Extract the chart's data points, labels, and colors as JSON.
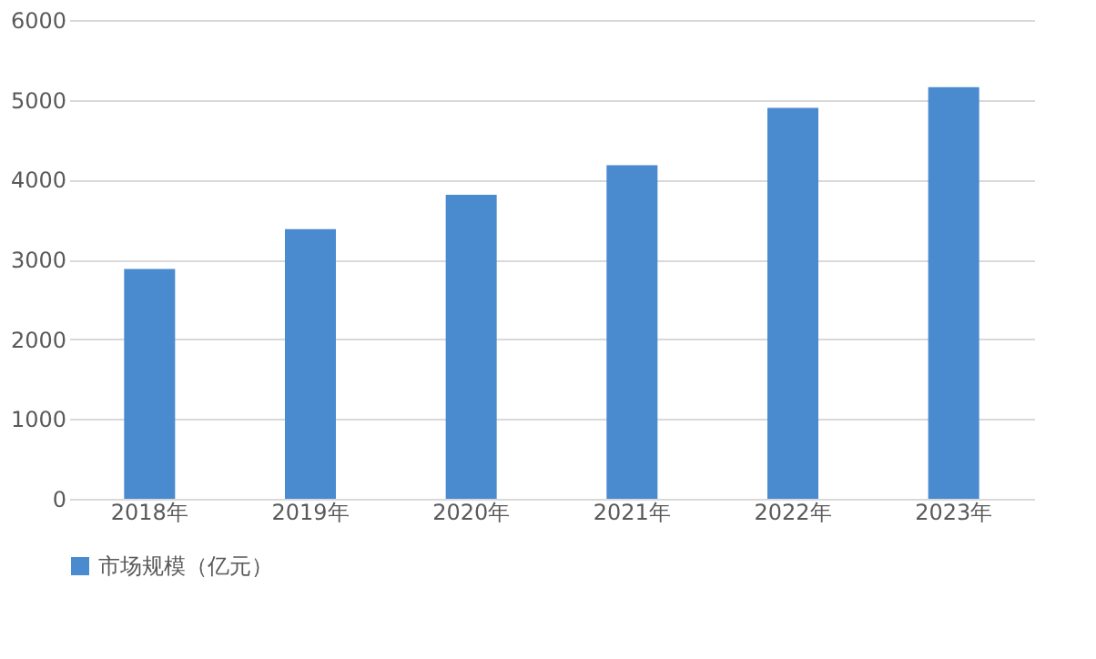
{
  "chart_data": {
    "type": "bar",
    "categories": [
      "2018年",
      "2019年",
      "2020年",
      "2021年",
      "2022年",
      "2023年"
    ],
    "series": [
      {
        "name": "市场规模（亿元）",
        "color": "#4a8bcf",
        "values": [
          2880,
          3380,
          3810,
          4180,
          4900,
          5160
        ]
      }
    ],
    "ylim": [
      0,
      6000
    ],
    "yticks": [
      0,
      1000,
      2000,
      3000,
      4000,
      5000,
      6000
    ],
    "grid": "y",
    "legend": "bottom"
  }
}
